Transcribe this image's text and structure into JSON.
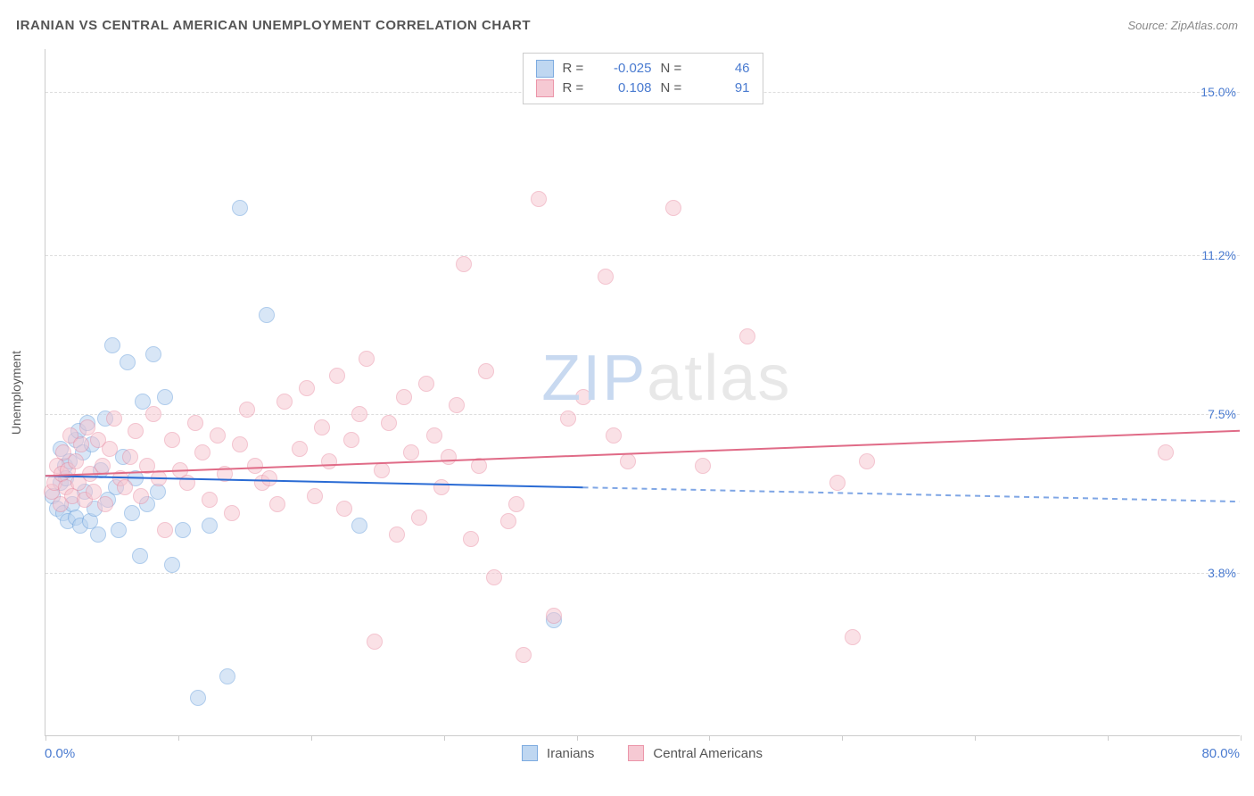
{
  "title": "IRANIAN VS CENTRAL AMERICAN UNEMPLOYMENT CORRELATION CHART",
  "source": "Source: ZipAtlas.com",
  "ylabel": "Unemployment",
  "watermark_parts": {
    "a": "ZIP",
    "b": "atlas"
  },
  "watermark_colors": {
    "a": "#c8d9f0",
    "b": "#e8e8e8"
  },
  "xaxis": {
    "min": 0.0,
    "max": 80.0,
    "min_label": "0.0%",
    "max_label": "80.0%",
    "tick_positions": [
      0.0,
      8.9,
      17.8,
      26.7,
      35.6,
      44.4,
      53.3,
      62.2,
      71.1,
      80.0
    ]
  },
  "yaxis": {
    "min": 0.0,
    "max": 16.0,
    "gridlines": [
      {
        "value": 3.8,
        "label": "3.8%"
      },
      {
        "value": 7.5,
        "label": "7.5%"
      },
      {
        "value": 11.2,
        "label": "11.2%"
      },
      {
        "value": 15.0,
        "label": "15.0%"
      }
    ]
  },
  "series": [
    {
      "name": "Iranians",
      "fill": "#b9d3f0",
      "stroke": "#6fa3dd",
      "fill_opacity": 0.55,
      "marker_radius": 9,
      "stroke_width": 1.2,
      "R": "-0.025",
      "N": "46",
      "trend": {
        "y_at_xmin": 6.05,
        "y_at_xmax": 5.45,
        "dash_after_x": 36.0,
        "color": "#2a6bd4",
        "width": 2
      },
      "points": [
        [
          0.5,
          5.6
        ],
        [
          0.8,
          5.3
        ],
        [
          1.0,
          6.7
        ],
        [
          1.0,
          5.9
        ],
        [
          1.2,
          5.2
        ],
        [
          1.3,
          6.3
        ],
        [
          1.4,
          6.0
        ],
        [
          1.5,
          5.0
        ],
        [
          1.6,
          6.4
        ],
        [
          1.8,
          5.4
        ],
        [
          2.0,
          6.9
        ],
        [
          2.0,
          5.1
        ],
        [
          2.2,
          7.1
        ],
        [
          2.3,
          4.9
        ],
        [
          2.5,
          6.6
        ],
        [
          2.6,
          5.7
        ],
        [
          2.8,
          7.3
        ],
        [
          3.0,
          5.0
        ],
        [
          3.1,
          6.8
        ],
        [
          3.3,
          5.3
        ],
        [
          3.5,
          4.7
        ],
        [
          3.7,
          6.2
        ],
        [
          4.0,
          7.4
        ],
        [
          4.2,
          5.5
        ],
        [
          4.5,
          9.1
        ],
        [
          4.7,
          5.8
        ],
        [
          4.9,
          4.8
        ],
        [
          5.2,
          6.5
        ],
        [
          5.5,
          8.7
        ],
        [
          5.8,
          5.2
        ],
        [
          6.0,
          6.0
        ],
        [
          6.3,
          4.2
        ],
        [
          6.5,
          7.8
        ],
        [
          6.8,
          5.4
        ],
        [
          7.2,
          8.9
        ],
        [
          7.5,
          5.7
        ],
        [
          8.0,
          7.9
        ],
        [
          8.5,
          4.0
        ],
        [
          9.2,
          4.8
        ],
        [
          10.2,
          0.9
        ],
        [
          11.0,
          4.9
        ],
        [
          12.2,
          1.4
        ],
        [
          13.0,
          12.3
        ],
        [
          14.8,
          9.8
        ],
        [
          21.0,
          4.9
        ],
        [
          34.0,
          2.7
        ]
      ]
    },
    {
      "name": "Central Americans",
      "fill": "#f6c4cf",
      "stroke": "#e98aa0",
      "fill_opacity": 0.5,
      "marker_radius": 9,
      "stroke_width": 1.2,
      "R": "0.108",
      "N": "91",
      "trend": {
        "y_at_xmin": 6.05,
        "y_at_xmax": 7.1,
        "dash_after_x": 80.0,
        "color": "#e06b87",
        "width": 2
      },
      "points": [
        [
          0.4,
          5.7
        ],
        [
          0.6,
          5.9
        ],
        [
          0.8,
          6.3
        ],
        [
          1.0,
          5.4
        ],
        [
          1.1,
          6.1
        ],
        [
          1.2,
          6.6
        ],
        [
          1.4,
          5.8
        ],
        [
          1.5,
          6.2
        ],
        [
          1.7,
          7.0
        ],
        [
          1.8,
          5.6
        ],
        [
          2.0,
          6.4
        ],
        [
          2.2,
          5.9
        ],
        [
          2.4,
          6.8
        ],
        [
          2.6,
          5.5
        ],
        [
          2.8,
          7.2
        ],
        [
          3.0,
          6.1
        ],
        [
          3.2,
          5.7
        ],
        [
          3.5,
          6.9
        ],
        [
          3.8,
          6.3
        ],
        [
          4.0,
          5.4
        ],
        [
          4.3,
          6.7
        ],
        [
          4.6,
          7.4
        ],
        [
          5.0,
          6.0
        ],
        [
          5.3,
          5.8
        ],
        [
          5.7,
          6.5
        ],
        [
          6.0,
          7.1
        ],
        [
          6.4,
          5.6
        ],
        [
          6.8,
          6.3
        ],
        [
          7.2,
          7.5
        ],
        [
          7.6,
          6.0
        ],
        [
          8.0,
          4.8
        ],
        [
          8.5,
          6.9
        ],
        [
          9.0,
          6.2
        ],
        [
          9.5,
          5.9
        ],
        [
          10.0,
          7.3
        ],
        [
          10.5,
          6.6
        ],
        [
          11.0,
          5.5
        ],
        [
          11.5,
          7.0
        ],
        [
          12.0,
          6.1
        ],
        [
          12.5,
          5.2
        ],
        [
          13.0,
          6.8
        ],
        [
          13.5,
          7.6
        ],
        [
          14.0,
          6.3
        ],
        [
          14.5,
          5.9
        ],
        [
          15.0,
          6.0
        ],
        [
          15.5,
          5.4
        ],
        [
          16.0,
          7.8
        ],
        [
          17.0,
          6.7
        ],
        [
          17.5,
          8.1
        ],
        [
          18.0,
          5.6
        ],
        [
          18.5,
          7.2
        ],
        [
          19.0,
          6.4
        ],
        [
          19.5,
          8.4
        ],
        [
          20.0,
          5.3
        ],
        [
          20.5,
          6.9
        ],
        [
          21.0,
          7.5
        ],
        [
          21.5,
          8.8
        ],
        [
          22.0,
          2.2
        ],
        [
          22.5,
          6.2
        ],
        [
          23.0,
          7.3
        ],
        [
          23.5,
          4.7
        ],
        [
          24.0,
          7.9
        ],
        [
          24.5,
          6.6
        ],
        [
          25.0,
          5.1
        ],
        [
          25.5,
          8.2
        ],
        [
          26.0,
          7.0
        ],
        [
          26.5,
          5.8
        ],
        [
          27.0,
          6.5
        ],
        [
          27.5,
          7.7
        ],
        [
          28.0,
          11.0
        ],
        [
          28.5,
          4.6
        ],
        [
          29.0,
          6.3
        ],
        [
          29.5,
          8.5
        ],
        [
          30.0,
          3.7
        ],
        [
          31.0,
          5.0
        ],
        [
          31.5,
          5.4
        ],
        [
          32.0,
          1.9
        ],
        [
          33.0,
          12.5
        ],
        [
          34.0,
          2.8
        ],
        [
          35.0,
          7.4
        ],
        [
          36.0,
          7.9
        ],
        [
          37.5,
          10.7
        ],
        [
          38.0,
          7.0
        ],
        [
          39.0,
          6.4
        ],
        [
          42.0,
          12.3
        ],
        [
          44.0,
          6.3
        ],
        [
          47.0,
          9.3
        ],
        [
          53.0,
          5.9
        ],
        [
          54.0,
          2.3
        ],
        [
          55.0,
          6.4
        ],
        [
          75.0,
          6.6
        ]
      ]
    }
  ]
}
